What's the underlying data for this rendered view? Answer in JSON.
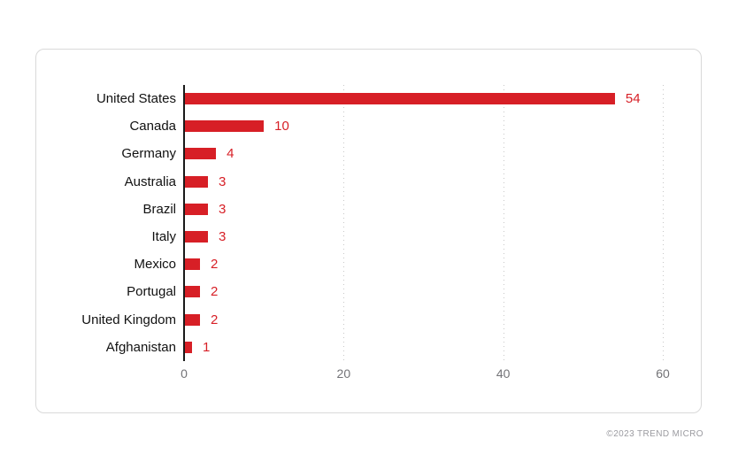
{
  "chart_data": {
    "type": "bar",
    "orientation": "horizontal",
    "title": "",
    "xlabel": "",
    "ylabel": "",
    "categories": [
      "United States",
      "Canada",
      "Germany",
      "Australia",
      "Brazil",
      "Italy",
      "Mexico",
      "Portugal",
      "United Kingdom",
      "Afghanistan"
    ],
    "values": [
      54,
      10,
      4,
      3,
      3,
      3,
      2,
      2,
      2,
      1
    ],
    "xlim": [
      0,
      60
    ],
    "xticks": [
      0,
      20,
      40,
      60
    ],
    "grid": "vertical dotted gridlines at x ticks (except 0)",
    "legend": "none",
    "value_labels": "shown at end of each bar"
  },
  "colors": {
    "bar": "#d71f26",
    "value_label": "#d71f26",
    "axis_line": "#1a1a1a",
    "gridline": "#c8c8c8",
    "tick_label": "#737377",
    "category_label": "#111111",
    "card_border": "#d9d9d9",
    "copyright_text": "#9b9ba0",
    "background": "#ffffff"
  },
  "footer": {
    "copyright": "©2023 TREND MICRO"
  }
}
